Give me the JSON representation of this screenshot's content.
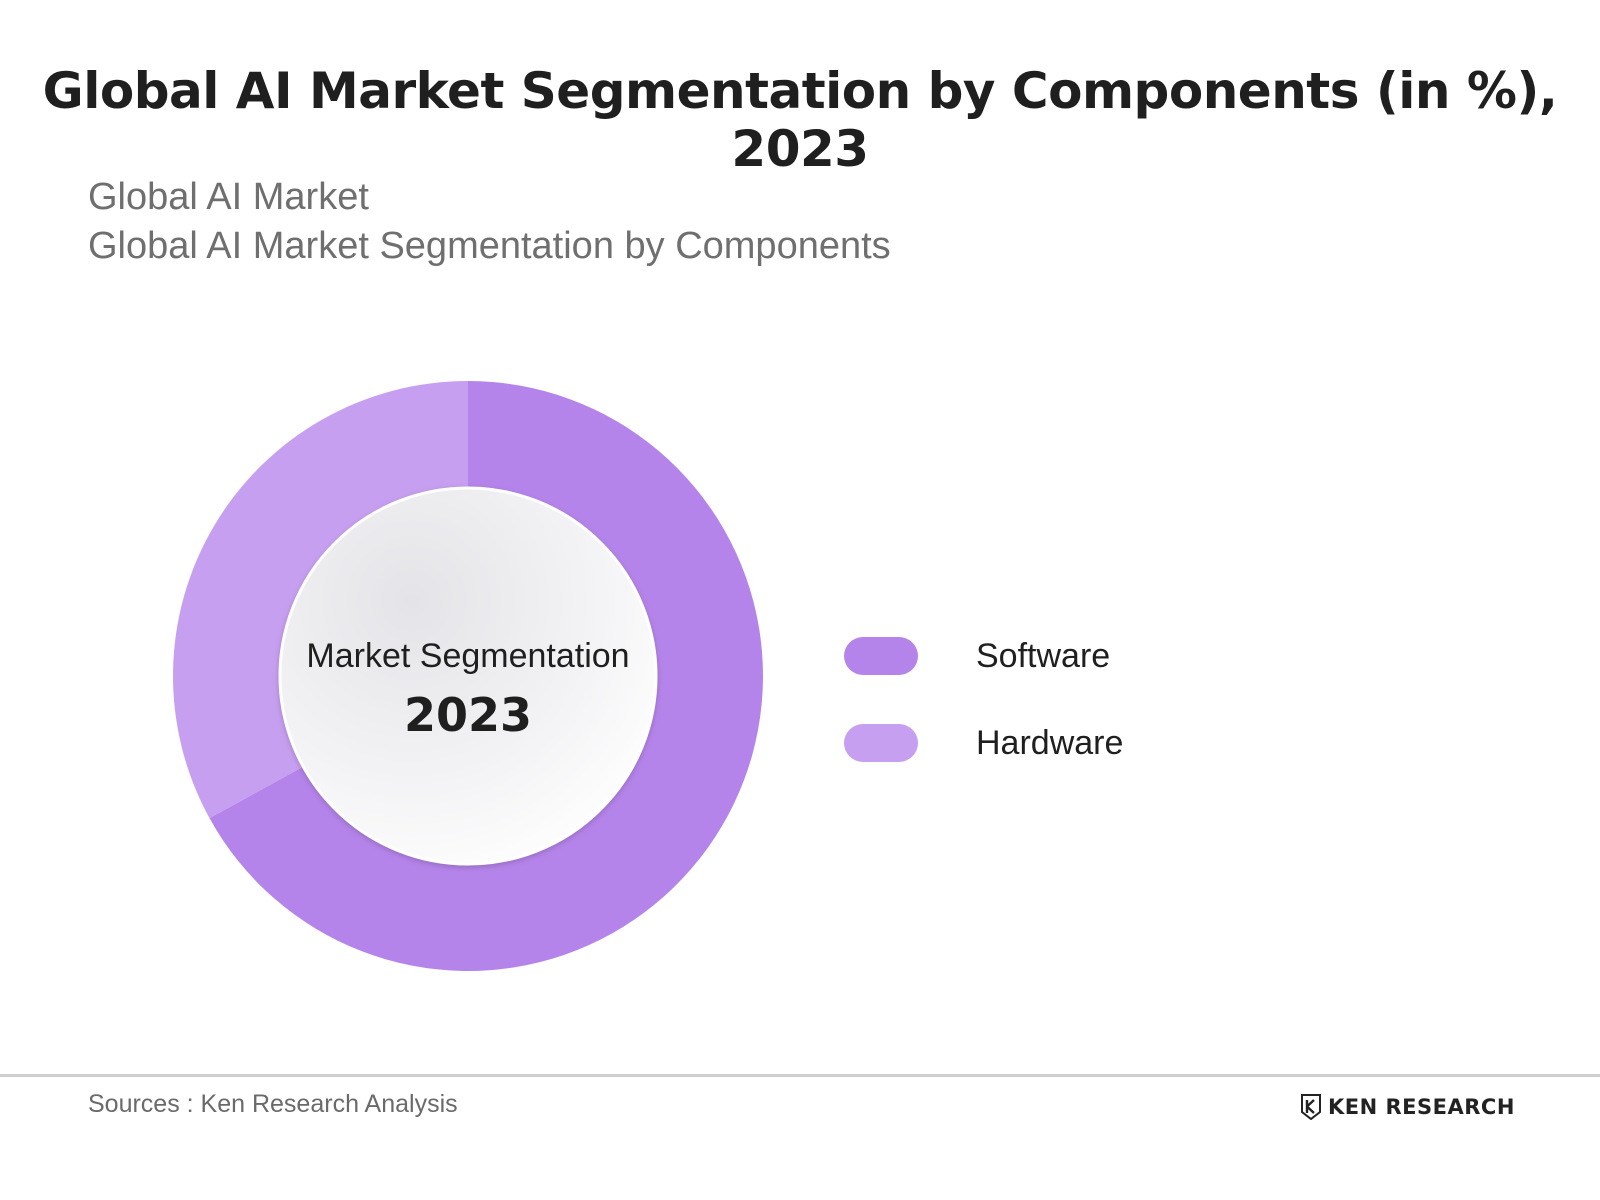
{
  "header": {
    "title": "Global AI Market Segmentation by Components (in %), 2023",
    "subtitle_line1": "Global AI Market",
    "subtitle_line2": "Global AI Market Segmentation by Components"
  },
  "chart_data": {
    "type": "pie",
    "donut": true,
    "center_label": "Market Segmentation",
    "center_value": "2023",
    "categories": [
      "Software",
      "Hardware"
    ],
    "values": [
      67,
      33
    ],
    "colors": [
      "#b584ea",
      "#c79ff0"
    ],
    "legend_position": "right"
  },
  "footer": {
    "source": "Sources : Ken Research Analysis",
    "brand": "KEN RESEARCH",
    "brand_icon": "ken-research-logo-icon"
  }
}
